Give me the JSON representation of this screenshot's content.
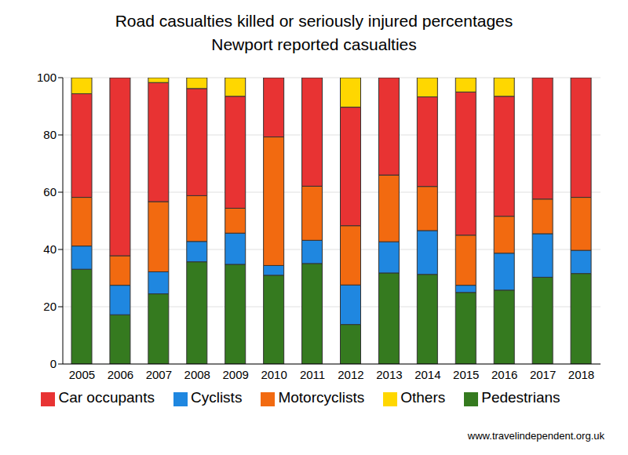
{
  "chart_data": {
    "type": "bar",
    "stacked": true,
    "title": "Road casualties killed or seriously injured percentages",
    "subtitle": "Newport reported casualties",
    "annotations": [
      "www.travelindependent.org.uk"
    ],
    "categories": [
      "2005",
      "2006",
      "2007",
      "2008",
      "2009",
      "2010",
      "2011",
      "2012",
      "2013",
      "2014",
      "2015",
      "2016",
      "2017",
      "2018"
    ],
    "series": [
      {
        "name": "Pedestrians",
        "color": "#357a1f",
        "values": [
          33.1,
          17.2,
          24.5,
          35.7,
          34.8,
          31.0,
          35.1,
          13.8,
          31.8,
          31.3,
          25.0,
          25.8,
          30.3,
          31.6
        ]
      },
      {
        "name": "Cyclists",
        "color": "#1f87e0",
        "values": [
          8.1,
          10.3,
          7.7,
          7.1,
          10.9,
          3.4,
          8.1,
          13.8,
          10.9,
          15.3,
          2.5,
          12.9,
          15.2,
          8.1
        ]
      },
      {
        "name": "Motorcyclists",
        "color": "#f26a10",
        "values": [
          17.0,
          10.3,
          24.5,
          16.0,
          8.7,
          44.9,
          18.9,
          20.7,
          23.3,
          15.4,
          17.5,
          12.9,
          12.1,
          18.5
        ]
      },
      {
        "name": "Car occupants",
        "color": "#e83333",
        "values": [
          36.2,
          62.2,
          41.6,
          37.4,
          39.1,
          20.7,
          37.9,
          41.4,
          34.0,
          31.3,
          50.0,
          41.9,
          42.4,
          41.8
        ]
      },
      {
        "name": "Others",
        "color": "#ffd700",
        "values": [
          5.6,
          0,
          1.7,
          3.8,
          6.5,
          0,
          0,
          10.3,
          0,
          6.7,
          5.0,
          6.5,
          0,
          0
        ]
      }
    ],
    "ylim": [
      0,
      100
    ],
    "yticks": [
      0,
      20,
      40,
      60,
      80,
      100
    ],
    "grid": true,
    "legend": "bottom"
  }
}
